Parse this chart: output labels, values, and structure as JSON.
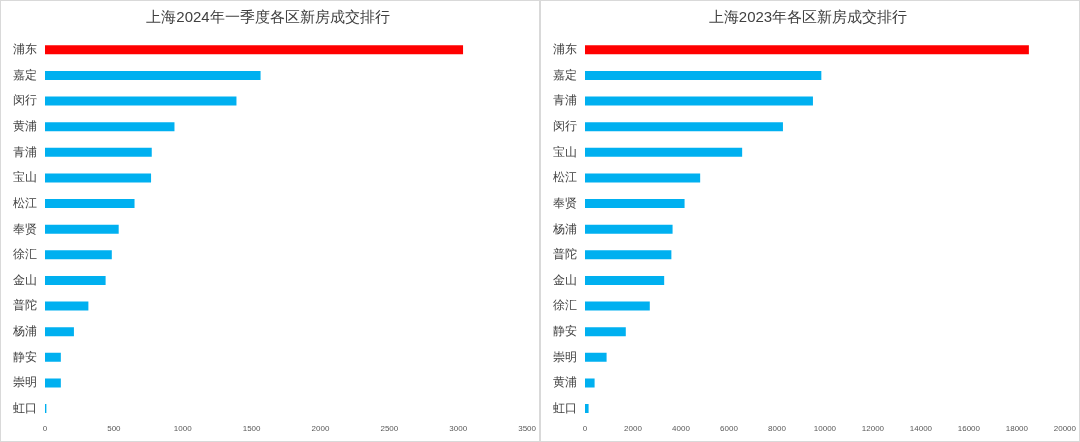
{
  "chart_data": [
    {
      "type": "bar",
      "orientation": "horizontal",
      "title": "上海2024年一季度各区新房成交排行",
      "categories": [
        "浦东",
        "嘉定",
        "闵行",
        "黄浦",
        "青浦",
        "宝山",
        "松江",
        "奉贤",
        "徐汇",
        "金山",
        "普陀",
        "杨浦",
        "静安",
        "崇明",
        "虹口"
      ],
      "values": [
        3035,
        1565,
        1390,
        940,
        775,
        770,
        650,
        535,
        485,
        440,
        315,
        210,
        115,
        115,
        10
      ],
      "colors": [
        "#ff0000",
        "#00b0f0",
        "#00b0f0",
        "#00b0f0",
        "#00b0f0",
        "#00b0f0",
        "#00b0f0",
        "#00b0f0",
        "#00b0f0",
        "#00b0f0",
        "#00b0f0",
        "#00b0f0",
        "#00b0f0",
        "#00b0f0",
        "#00b0f0"
      ],
      "xlim": [
        0,
        3500
      ],
      "xticks": [
        0,
        500,
        1000,
        1500,
        2000,
        2500,
        3000,
        3500
      ],
      "grid": false,
      "legend": false
    },
    {
      "type": "bar",
      "orientation": "horizontal",
      "title": "上海2023年各区新房成交排行",
      "categories": [
        "浦东",
        "嘉定",
        "青浦",
        "闵行",
        "宝山",
        "松江",
        "奉贤",
        "杨浦",
        "普陀",
        "金山",
        "徐汇",
        "静安",
        "崇明",
        "黄浦",
        "虹口"
      ],
      "values": [
        18500,
        9850,
        9500,
        8250,
        6550,
        4800,
        4150,
        3650,
        3600,
        3300,
        2700,
        1700,
        900,
        400,
        150
      ],
      "colors": [
        "#ff0000",
        "#00b0f0",
        "#00b0f0",
        "#00b0f0",
        "#00b0f0",
        "#00b0f0",
        "#00b0f0",
        "#00b0f0",
        "#00b0f0",
        "#00b0f0",
        "#00b0f0",
        "#00b0f0",
        "#00b0f0",
        "#00b0f0",
        "#00b0f0"
      ],
      "xlim": [
        0,
        20000
      ],
      "xticks": [
        0,
        2000,
        4000,
        6000,
        8000,
        10000,
        12000,
        14000,
        16000,
        18000,
        20000
      ],
      "grid": false,
      "legend": false
    }
  ]
}
